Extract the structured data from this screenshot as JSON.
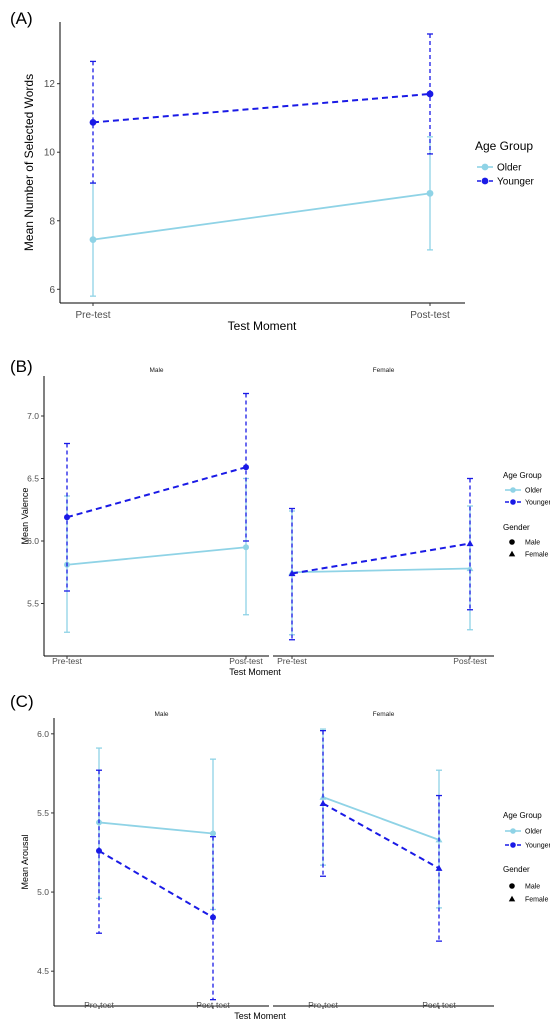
{
  "colors": {
    "older": "#8fd3e6",
    "younger": "#1a1ae6",
    "axis": "#000000"
  },
  "chart_data": [
    {
      "panel_label": "(A)",
      "type": "line",
      "xlabel": "Test Moment",
      "ylabel": "Mean Number of Selected Words",
      "categories": [
        "Pre-test",
        "Post-test"
      ],
      "ylim": [
        5.6,
        13.8
      ],
      "yticks": [
        6,
        8,
        10,
        12
      ],
      "legend": {
        "title": "Age Group",
        "entries": [
          "Older",
          "Younger"
        ],
        "position": "right"
      },
      "facets": [
        {
          "strip": "",
          "series": [
            {
              "group": "Older",
              "marker": "circle",
              "line": "solid",
              "values": [
                7.45,
                8.8
              ],
              "lower": [
                5.8,
                7.15
              ],
              "upper": [
                9.1,
                10.45
              ]
            },
            {
              "group": "Younger",
              "marker": "circle",
              "line": "dashed",
              "values": [
                10.87,
                11.7
              ],
              "lower": [
                9.1,
                9.95
              ],
              "upper": [
                12.65,
                13.45
              ]
            }
          ]
        }
      ]
    },
    {
      "panel_label": "(B)",
      "type": "line",
      "xlabel": "Test Moment",
      "ylabel": "Mean Valence",
      "categories": [
        "Pre-test",
        "Post-test"
      ],
      "ylim": [
        5.08,
        7.32
      ],
      "yticks": [
        5.5,
        6.0,
        6.5,
        7.0
      ],
      "yticklabels": [
        "5.5",
        "6.0",
        "6.5",
        "7.0"
      ],
      "legend": {
        "title": "Age Group",
        "entries": [
          "Older",
          "Younger"
        ],
        "position": "right"
      },
      "legend2": {
        "title": "Gender",
        "entries": [
          "Male",
          "Female"
        ]
      },
      "facets": [
        {
          "strip": "Male",
          "series": [
            {
              "group": "Older",
              "marker": "circle",
              "line": "solid",
              "values": [
                5.81,
                5.95
              ],
              "lower": [
                5.27,
                5.41
              ],
              "upper": [
                6.36,
                6.5
              ]
            },
            {
              "group": "Younger",
              "marker": "circle",
              "line": "dashed",
              "values": [
                6.19,
                6.59
              ],
              "lower": [
                5.6,
                6.0
              ],
              "upper": [
                6.78,
                7.18
              ]
            }
          ]
        },
        {
          "strip": "Female",
          "series": [
            {
              "group": "Older",
              "marker": "triangle",
              "line": "solid",
              "values": [
                5.75,
                5.78
              ],
              "lower": [
                5.25,
                5.29
              ],
              "upper": [
                6.24,
                6.28
              ]
            },
            {
              "group": "Younger",
              "marker": "triangle",
              "line": "dashed",
              "values": [
                5.74,
                5.98
              ],
              "lower": [
                5.21,
                5.45
              ],
              "upper": [
                6.26,
                6.5
              ]
            }
          ]
        }
      ]
    },
    {
      "panel_label": "(C)",
      "type": "line",
      "xlabel": "Test Moment",
      "ylabel": "Mean Arousal",
      "categories": [
        "Pre-test",
        "Post-test"
      ],
      "ylim": [
        4.28,
        6.1
      ],
      "yticks": [
        4.5,
        5.0,
        5.5,
        6.0
      ],
      "yticklabels": [
        "4.5",
        "5.0",
        "5.5",
        "6.0"
      ],
      "legend": {
        "title": "Age Group",
        "entries": [
          "Older",
          "Younger"
        ],
        "position": "right"
      },
      "legend2": {
        "title": "Gender",
        "entries": [
          "Male",
          "Female"
        ]
      },
      "facets": [
        {
          "strip": "Male",
          "series": [
            {
              "group": "Older",
              "marker": "circle",
              "line": "solid",
              "values": [
                5.44,
                5.37
              ],
              "lower": [
                4.96,
                4.89
              ],
              "upper": [
                5.91,
                5.84
              ]
            },
            {
              "group": "Younger",
              "marker": "circle",
              "line": "dashed",
              "values": [
                5.26,
                4.84
              ],
              "lower": [
                4.74,
                4.32
              ],
              "upper": [
                5.77,
                5.35
              ]
            }
          ]
        },
        {
          "strip": "Female",
          "series": [
            {
              "group": "Older",
              "marker": "triangle",
              "line": "solid",
              "values": [
                5.6,
                5.33
              ],
              "lower": [
                5.17,
                4.9
              ],
              "upper": [
                6.03,
                5.77
              ]
            },
            {
              "group": "Younger",
              "marker": "triangle",
              "line": "dashed",
              "values": [
                5.56,
                5.15
              ],
              "lower": [
                5.1,
                4.69
              ],
              "upper": [
                6.02,
                5.61
              ]
            }
          ]
        }
      ]
    }
  ]
}
